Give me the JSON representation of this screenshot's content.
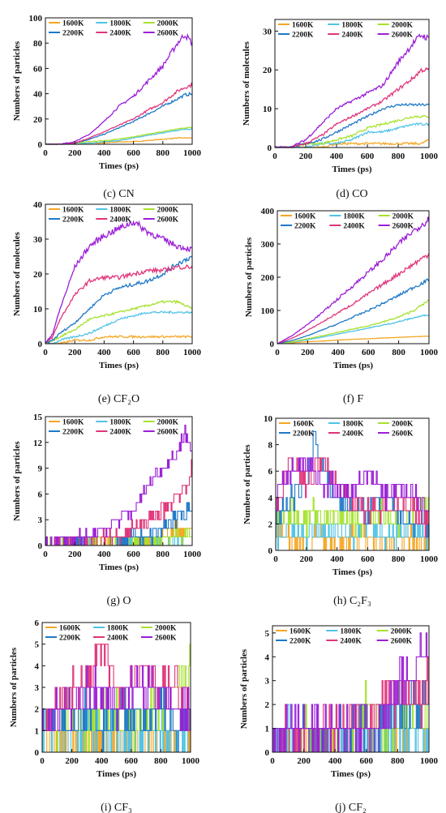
{
  "legend_labels": [
    "1600K",
    "1800K",
    "2000K",
    "2200K",
    "2400K",
    "2600K"
  ],
  "series_colors": [
    "#f5a623",
    "#4fc3e6",
    "#a6e22e",
    "#1f78c8",
    "#e0357a",
    "#9b1fd6"
  ],
  "chart_data": [
    {
      "type": "line",
      "caption": "(c) CN",
      "xlabel": "Times (ps)",
      "ylabel": "Numbers of particles",
      "xlim": [
        0,
        1000
      ],
      "ylim": [
        0,
        100
      ],
      "xticks": [
        0,
        200,
        400,
        600,
        800,
        1000
      ],
      "yticks": [
        0,
        20,
        40,
        60,
        80,
        100
      ],
      "x": [
        0,
        100,
        200,
        300,
        400,
        500,
        600,
        700,
        800,
        900,
        950,
        1000
      ],
      "series": [
        {
          "name": "1600K",
          "values": [
            0,
            0,
            0,
            1,
            1,
            2,
            2,
            3,
            4,
            5,
            5,
            5
          ]
        },
        {
          "name": "1800K",
          "values": [
            0,
            0,
            0,
            1,
            2,
            3,
            5,
            7,
            9,
            11,
            12,
            12
          ]
        },
        {
          "name": "2000K",
          "values": [
            0,
            0,
            1,
            2,
            3,
            4,
            6,
            8,
            10,
            12,
            13,
            13
          ]
        },
        {
          "name": "2200K",
          "values": [
            0,
            0,
            1,
            4,
            8,
            13,
            18,
            24,
            30,
            36,
            39,
            40
          ]
        },
        {
          "name": "2400K",
          "values": [
            0,
            0,
            1,
            5,
            10,
            15,
            20,
            27,
            33,
            42,
            45,
            47
          ]
        },
        {
          "name": "2600K",
          "values": [
            0,
            0,
            2,
            8,
            18,
            30,
            38,
            50,
            62,
            80,
            87,
            80
          ]
        }
      ]
    },
    {
      "type": "line",
      "caption": "(d) CO",
      "xlabel": "Times (ps)",
      "ylabel": "Numbers of molecules",
      "xlim": [
        0,
        1000
      ],
      "ylim": [
        0,
        33
      ],
      "xticks": [
        0,
        200,
        400,
        600,
        800,
        1000
      ],
      "yticks": [
        0,
        10,
        20,
        30
      ],
      "x": [
        0,
        100,
        200,
        300,
        400,
        500,
        600,
        700,
        800,
        900,
        950,
        1000
      ],
      "series": [
        {
          "name": "1600K",
          "values": [
            0,
            0,
            0,
            0,
            1,
            1,
            1,
            1,
            1,
            1,
            1,
            2
          ]
        },
        {
          "name": "1800K",
          "values": [
            0,
            0,
            0,
            1,
            1,
            2,
            4,
            4,
            5,
            6,
            6,
            6
          ]
        },
        {
          "name": "2000K",
          "values": [
            0,
            0,
            1,
            1,
            2,
            3,
            5,
            6,
            7,
            8,
            8,
            8
          ]
        },
        {
          "name": "2200K",
          "values": [
            0,
            0,
            1,
            2,
            4,
            6,
            8,
            10,
            11,
            11,
            11,
            11
          ]
        },
        {
          "name": "2400K",
          "values": [
            0,
            0,
            1,
            3,
            6,
            8,
            10,
            12,
            15,
            18,
            20,
            20
          ]
        },
        {
          "name": "2600K",
          "values": [
            0,
            0,
            2,
            6,
            10,
            12,
            14,
            16,
            22,
            27,
            29,
            28
          ]
        }
      ]
    },
    {
      "type": "line",
      "caption": "(e) CF₂O",
      "xlabel": "Times (ps)",
      "ylabel": "Numbers of molecules",
      "xlim": [
        0,
        1000
      ],
      "ylim": [
        0,
        40
      ],
      "xticks": [
        0,
        200,
        400,
        600,
        800,
        1000
      ],
      "yticks": [
        0,
        10,
        20,
        30,
        40
      ],
      "x": [
        0,
        50,
        100,
        200,
        300,
        400,
        500,
        600,
        700,
        800,
        900,
        1000
      ],
      "series": [
        {
          "name": "1600K",
          "values": [
            0,
            0,
            0,
            1,
            1,
            2,
            2,
            2,
            2,
            2,
            2,
            2
          ]
        },
        {
          "name": "1800K",
          "values": [
            0,
            0,
            1,
            2,
            3,
            5,
            7,
            8,
            9,
            9,
            9,
            9
          ]
        },
        {
          "name": "2000K",
          "values": [
            0,
            1,
            2,
            4,
            7,
            8,
            9,
            10,
            11,
            12,
            12,
            10
          ]
        },
        {
          "name": "2200K",
          "values": [
            0,
            1,
            3,
            6,
            10,
            14,
            16,
            17,
            18,
            20,
            23,
            25
          ]
        },
        {
          "name": "2400K",
          "values": [
            0,
            2,
            7,
            14,
            18,
            19,
            19,
            20,
            21,
            21,
            22,
            22
          ]
        },
        {
          "name": "2600K",
          "values": [
            0,
            3,
            10,
            22,
            28,
            31,
            33,
            35,
            32,
            30,
            28,
            27
          ]
        }
      ]
    },
    {
      "type": "line",
      "caption": "(f) F",
      "xlabel": "Times (ps)",
      "ylabel": "Numbers of particles",
      "xlim": [
        0,
        1000
      ],
      "ylim": [
        0,
        400
      ],
      "xticks": [
        0,
        200,
        400,
        600,
        800,
        1000
      ],
      "yticks": [
        0,
        100,
        200,
        300,
        400
      ],
      "x": [
        0,
        100,
        200,
        300,
        400,
        500,
        600,
        700,
        800,
        900,
        1000
      ],
      "series": [
        {
          "name": "1600K",
          "values": [
            0,
            3,
            6,
            8,
            11,
            13,
            15,
            17,
            19,
            21,
            23
          ]
        },
        {
          "name": "1800K",
          "values": [
            0,
            5,
            12,
            20,
            29,
            38,
            47,
            56,
            66,
            78,
            88
          ]
        },
        {
          "name": "2000K",
          "values": [
            0,
            6,
            15,
            24,
            34,
            44,
            54,
            66,
            80,
            100,
            130
          ]
        },
        {
          "name": "2200K",
          "values": [
            0,
            10,
            24,
            42,
            60,
            80,
            100,
            122,
            145,
            170,
            192
          ]
        },
        {
          "name": "2400K",
          "values": [
            0,
            17,
            40,
            66,
            93,
            120,
            150,
            180,
            210,
            240,
            270
          ]
        },
        {
          "name": "2600K",
          "values": [
            0,
            25,
            58,
            95,
            135,
            175,
            215,
            255,
            300,
            340,
            375
          ]
        }
      ]
    },
    {
      "type": "line",
      "caption": "(g) O",
      "xlabel": "Times (ps)",
      "ylabel": "Numbers of particles",
      "xlim": [
        0,
        1000
      ],
      "ylim": [
        0,
        15
      ],
      "xticks": [
        0,
        200,
        400,
        600,
        800,
        1000
      ],
      "yticks": [
        0,
        3,
        6,
        9,
        12,
        15
      ],
      "x": [
        0,
        200,
        300,
        400,
        500,
        600,
        700,
        800,
        850,
        900,
        950,
        1000
      ],
      "series": [
        {
          "name": "1600K",
          "values": [
            0,
            0,
            0,
            0,
            0,
            0,
            0,
            1,
            2,
            2,
            2,
            2
          ]
        },
        {
          "name": "1800K",
          "values": [
            0,
            0,
            0,
            0,
            0,
            0,
            0,
            0,
            0,
            0,
            0,
            0
          ]
        },
        {
          "name": "2000K",
          "values": [
            0,
            0,
            0,
            0,
            0,
            0,
            0,
            1,
            1,
            1,
            1,
            1
          ]
        },
        {
          "name": "2200K",
          "values": [
            0,
            0,
            0,
            0,
            0,
            1,
            1,
            2,
            3,
            3,
            4,
            5
          ]
        },
        {
          "name": "2400K",
          "values": [
            0,
            0,
            0,
            1,
            1,
            2,
            3,
            4,
            5,
            6,
            7,
            9
          ]
        },
        {
          "name": "2600K",
          "values": [
            0,
            1,
            1,
            2,
            3,
            4,
            7,
            9,
            10,
            11,
            13,
            11
          ]
        }
      ]
    },
    {
      "type": "line",
      "caption": "(h) C₂F₃",
      "xlabel": "Times (ps)",
      "ylabel": "Numbers of particles",
      "xlim": [
        0,
        1000
      ],
      "ylim": [
        0,
        10
      ],
      "xticks": [
        0,
        200,
        400,
        600,
        800,
        1000
      ],
      "yticks": [
        0,
        2,
        4,
        6,
        8,
        10
      ],
      "x": [
        0,
        100,
        200,
        250,
        300,
        400,
        500,
        600,
        700,
        800,
        900,
        1000
      ],
      "series": [
        {
          "name": "1600K",
          "values": [
            1,
            1,
            0,
            1,
            1,
            0,
            1,
            1,
            0,
            1,
            1,
            0
          ]
        },
        {
          "name": "1800K",
          "values": [
            1,
            2,
            1,
            2,
            1,
            2,
            1,
            2,
            1,
            1,
            2,
            1
          ]
        },
        {
          "name": "2000K",
          "values": [
            2,
            3,
            2,
            3,
            2,
            3,
            2,
            2,
            3,
            2,
            3,
            4
          ]
        },
        {
          "name": "2200K",
          "values": [
            2,
            4,
            5,
            9,
            6,
            4,
            3,
            3,
            4,
            3,
            2,
            2
          ]
        },
        {
          "name": "2400K",
          "values": [
            3,
            7,
            5,
            6,
            7,
            5,
            4,
            3,
            3,
            4,
            3,
            2
          ]
        },
        {
          "name": "2600K",
          "values": [
            4,
            6,
            7,
            6,
            5,
            5,
            4,
            6,
            4,
            5,
            4,
            3
          ]
        }
      ]
    },
    {
      "type": "line",
      "caption": "(i) CF₃",
      "xlabel": "Times (ps)",
      "ylabel": "Numbers of particles",
      "xlim": [
        0,
        1000
      ],
      "ylim": [
        0,
        6
      ],
      "xticks": [
        0,
        200,
        400,
        600,
        800,
        1000
      ],
      "yticks": [
        0,
        1,
        2,
        3,
        4,
        5,
        6
      ],
      "x": [
        0,
        100,
        200,
        300,
        400,
        500,
        600,
        700,
        800,
        900,
        1000
      ],
      "series": [
        {
          "name": "1600K",
          "values": [
            1,
            0,
            1,
            0,
            1,
            0,
            1,
            0,
            1,
            0,
            1
          ]
        },
        {
          "name": "1800K",
          "values": [
            1,
            1,
            0,
            1,
            1,
            1,
            0,
            1,
            1,
            0,
            1
          ]
        },
        {
          "name": "2000K",
          "values": [
            1,
            1,
            2,
            1,
            2,
            2,
            1,
            2,
            2,
            3,
            4
          ]
        },
        {
          "name": "2200K",
          "values": [
            1,
            2,
            1,
            2,
            1,
            2,
            2,
            1,
            2,
            1,
            2
          ]
        },
        {
          "name": "2400K",
          "values": [
            1,
            2,
            3,
            3,
            5,
            3,
            3,
            4,
            3,
            3,
            2
          ]
        },
        {
          "name": "2600K",
          "values": [
            1,
            2,
            2,
            3,
            3,
            2,
            3,
            3,
            3,
            2,
            2
          ]
        }
      ]
    },
    {
      "type": "line",
      "caption": "(j) CF₂",
      "xlabel": "Times (ps)",
      "ylabel": "Numbers of particles",
      "xlim": [
        0,
        1000
      ],
      "ylim": [
        0,
        5.3
      ],
      "xticks": [
        0,
        200,
        400,
        600,
        800,
        1000
      ],
      "yticks": [
        0,
        1,
        2,
        3,
        4,
        5
      ],
      "x": [
        0,
        100,
        200,
        300,
        400,
        500,
        600,
        700,
        800,
        900,
        950,
        1000
      ],
      "series": [
        {
          "name": "1600K",
          "values": [
            0,
            0,
            0,
            0,
            0,
            0,
            0,
            0,
            0,
            0,
            1,
            0
          ]
        },
        {
          "name": "1800K",
          "values": [
            0,
            1,
            0,
            0,
            1,
            0,
            1,
            0,
            1,
            1,
            0,
            1
          ]
        },
        {
          "name": "2000K",
          "values": [
            0,
            0,
            1,
            0,
            0,
            1,
            2,
            1,
            1,
            2,
            1,
            1
          ]
        },
        {
          "name": "2200K",
          "values": [
            0,
            1,
            1,
            0,
            1,
            1,
            1,
            1,
            2,
            2,
            2,
            2
          ]
        },
        {
          "name": "2400K",
          "values": [
            0,
            1,
            0,
            1,
            1,
            1,
            1,
            2,
            2,
            3,
            2,
            3
          ]
        },
        {
          "name": "2600K",
          "values": [
            0,
            1,
            1,
            1,
            1,
            1,
            1,
            1,
            3,
            3,
            5,
            4
          ]
        }
      ]
    }
  ]
}
